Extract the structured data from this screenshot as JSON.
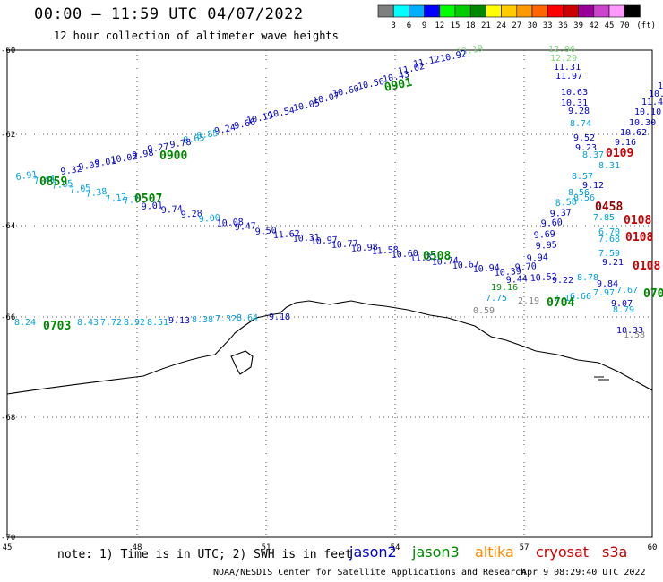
{
  "header": {
    "title": "00:00 – 11:59 UTC 04/07/2022",
    "subtitle": "12 hour collection of altimeter wave heights"
  },
  "colorbar": {
    "labels": [
      "3",
      "6",
      "9",
      "12",
      "15",
      "18",
      "21",
      "24",
      "27",
      "30",
      "33",
      "36",
      "39",
      "42",
      "45",
      "70"
    ],
    "unit": "(ft)",
    "colors": [
      "#7f7f7f",
      "#00ffff",
      "#00b0ff",
      "#0000ff",
      "#00ff00",
      "#00cc00",
      "#008800",
      "#ffff00",
      "#ffcc00",
      "#ff9900",
      "#ff6600",
      "#ff0000",
      "#cc0000",
      "#990099",
      "#cc44cc",
      "#ff99ff",
      "#000000"
    ]
  },
  "axes": {
    "lat_labels": [
      "-60",
      "-62",
      "-64",
      "-66",
      "-68",
      "-70"
    ],
    "lon_labels": [
      "45",
      "48",
      "51",
      "54",
      "57",
      "60"
    ]
  },
  "satellites": [
    {
      "name": "jason2",
      "color": "#0000cc"
    },
    {
      "name": "jason3",
      "color": "#008800"
    },
    {
      "name": "altika",
      "color": "#ff8800"
    },
    {
      "name": "cryosat",
      "color": "#cc0000"
    },
    {
      "name": "s3a",
      "color": "#cc0000"
    }
  ],
  "footer": {
    "note": "note:  1) Time is in UTC;  2) SWH is in feet",
    "credit": "NOAA/NESDIS Center for Satellite Applications and Research",
    "timestamp": "Apr  9 08:29:40 UTC 2022"
  },
  "time_labels": [
    {
      "text": "0901",
      "color": "#008800"
    },
    {
      "text": "0900",
      "color": "#008800"
    },
    {
      "text": "0859",
      "color": "#008800"
    },
    {
      "text": "0507",
      "color": "#008800"
    },
    {
      "text": "0508",
      "color": "#008800"
    },
    {
      "text": "0703",
      "color": "#008800"
    },
    {
      "text": "0704",
      "color": "#008800"
    },
    {
      "text": "0109",
      "color": "#cc0000"
    },
    {
      "text": "0458",
      "color": "#990000"
    },
    {
      "text": "0108",
      "color": "#cc0000"
    },
    {
      "text": "0108",
      "color": "#cc0000"
    },
    {
      "text": "0108",
      "color": "#cc0000"
    },
    {
      "text": "070",
      "color": "#008800"
    }
  ],
  "values": [
    {
      "text": "13.19",
      "color": "#7fd97f"
    },
    {
      "text": "10.92",
      "color": "#0000cc"
    },
    {
      "text": "11.12",
      "color": "#0000cc"
    },
    {
      "text": "11.02",
      "color": "#0000cc"
    },
    {
      "text": "10.43",
      "color": "#0000cc"
    },
    {
      "text": "10.56",
      "color": "#0000cc"
    },
    {
      "text": "10.60",
      "color": "#0000cc"
    },
    {
      "text": "10.07",
      "color": "#0000cc"
    },
    {
      "text": "10.05",
      "color": "#0000cc"
    },
    {
      "text": "10.54",
      "color": "#0000cc"
    },
    {
      "text": "10.19",
      "color": "#0000cc"
    },
    {
      "text": "9.66",
      "color": "#0000cc"
    },
    {
      "text": "9.24",
      "color": "#0000cc"
    },
    {
      "text": "8.85",
      "color": "#00a0e0"
    },
    {
      "text": "8.65",
      "color": "#00a0e0"
    },
    {
      "text": "9.78",
      "color": "#0000cc"
    },
    {
      "text": "9.27",
      "color": "#0000cc"
    },
    {
      "text": "9.98",
      "color": "#0000cc"
    },
    {
      "text": "10.02",
      "color": "#0000cc"
    },
    {
      "text": "9.01",
      "color": "#0000cc"
    },
    {
      "text": "9.03",
      "color": "#0000cc"
    },
    {
      "text": "9.32",
      "color": "#0000cc"
    },
    {
      "text": "6.91",
      "color": "#00a0e0"
    },
    {
      "text": "7.44",
      "color": "#00a0e0"
    },
    {
      "text": "7.05",
      "color": "#00a0e0"
    },
    {
      "text": "7.05",
      "color": "#00a0e0"
    },
    {
      "text": "7.38",
      "color": "#00a0e0"
    },
    {
      "text": "7.12",
      "color": "#00a0e0"
    },
    {
      "text": "7.7",
      "color": "#00a0e0"
    },
    {
      "text": "9.01",
      "color": "#0000cc"
    },
    {
      "text": "9.74",
      "color": "#0000cc"
    },
    {
      "text": "9.28",
      "color": "#0000cc"
    },
    {
      "text": "9.00",
      "color": "#00a0e0"
    },
    {
      "text": "10.08",
      "color": "#0000cc"
    },
    {
      "text": "9.47",
      "color": "#0000cc"
    },
    {
      "text": "9.50",
      "color": "#0000cc"
    },
    {
      "text": "11.62",
      "color": "#0000cc"
    },
    {
      "text": "10.31",
      "color": "#0000cc"
    },
    {
      "text": "10.97",
      "color": "#0000cc"
    },
    {
      "text": "10.77",
      "color": "#0000cc"
    },
    {
      "text": "10.98",
      "color": "#0000cc"
    },
    {
      "text": "11.58",
      "color": "#0000cc"
    },
    {
      "text": "10.60",
      "color": "#0000cc"
    },
    {
      "text": "11.31",
      "color": "#0000cc"
    },
    {
      "text": "10.74",
      "color": "#0000cc"
    },
    {
      "text": "10.67",
      "color": "#0000cc"
    },
    {
      "text": "10.94",
      "color": "#0000cc"
    },
    {
      "text": "10.39",
      "color": "#0000cc"
    },
    {
      "text": "9.44",
      "color": "#0000cc"
    },
    {
      "text": "10.52",
      "color": "#0000cc"
    },
    {
      "text": "9.70",
      "color": "#0000cc"
    },
    {
      "text": "9.94",
      "color": "#0000cc"
    },
    {
      "text": "9.95",
      "color": "#0000cc"
    },
    {
      "text": "9.69",
      "color": "#0000cc"
    },
    {
      "text": "9.60",
      "color": "#0000cc"
    },
    {
      "text": "9.37",
      "color": "#0000cc"
    },
    {
      "text": "8.58",
      "color": "#00a0e0"
    },
    {
      "text": "8.56",
      "color": "#00a0e0"
    },
    {
      "text": "8.56",
      "color": "#00a0e0"
    },
    {
      "text": "9.12",
      "color": "#0000cc"
    },
    {
      "text": "8.57",
      "color": "#00a0e0"
    },
    {
      "text": "8.31",
      "color": "#00a0e0"
    },
    {
      "text": "8.37",
      "color": "#00a0e0"
    },
    {
      "text": "9.23",
      "color": "#0000cc"
    },
    {
      "text": "9.52",
      "color": "#0000cc"
    },
    {
      "text": "8.74",
      "color": "#00a0e0"
    },
    {
      "text": "9.28",
      "color": "#0000cc"
    },
    {
      "text": "10.31",
      "color": "#0000cc"
    },
    {
      "text": "10.63",
      "color": "#0000cc"
    },
    {
      "text": "11.97",
      "color": "#0000cc"
    },
    {
      "text": "11.31",
      "color": "#0000cc"
    },
    {
      "text": "12.29",
      "color": "#7fd97f"
    },
    {
      "text": "12.96",
      "color": "#7fd97f"
    },
    {
      "text": "9.16",
      "color": "#0000cc"
    },
    {
      "text": "10.62",
      "color": "#0000cc"
    },
    {
      "text": "10.30",
      "color": "#0000cc"
    },
    {
      "text": "10.10",
      "color": "#0000cc"
    },
    {
      "text": "11.4",
      "color": "#0000cc"
    },
    {
      "text": "10.",
      "color": "#0000cc"
    },
    {
      "text": "1",
      "color": "#0000cc"
    },
    {
      "text": "7.85",
      "color": "#00a0e0"
    },
    {
      "text": "6.70",
      "color": "#00a0e0"
    },
    {
      "text": "7.68",
      "color": "#00a0e0"
    },
    {
      "text": "7.59",
      "color": "#00a0e0"
    },
    {
      "text": "9.21",
      "color": "#0000cc"
    },
    {
      "text": "9.22",
      "color": "#0000cc"
    },
    {
      "text": "8.78",
      "color": "#00a0e0"
    },
    {
      "text": "9.84",
      "color": "#0000cc"
    },
    {
      "text": "7.97",
      "color": "#00a0e0"
    },
    {
      "text": "7.67",
      "color": "#00a0e0"
    },
    {
      "text": "7.12",
      "color": "#00a0e0"
    },
    {
      "text": "6.66",
      "color": "#00a0e0"
    },
    {
      "text": "19.16",
      "color": "#008800"
    },
    {
      "text": "7.75",
      "color": "#00a0e0"
    },
    {
      "text": "0.59",
      "color": "#7f7f7f"
    },
    {
      "text": "2.19",
      "color": "#7f7f7f"
    },
    {
      "text": "9.07",
      "color": "#0000cc"
    },
    {
      "text": "8.79",
      "color": "#00a0e0"
    },
    {
      "text": "10.33",
      "color": "#0000cc"
    },
    {
      "text": "1.58",
      "color": "#7f7f7f"
    },
    {
      "text": "8.24",
      "color": "#00a0e0"
    },
    {
      "text": "8.43",
      "color": "#00a0e0"
    },
    {
      "text": "7.72",
      "color": "#00a0e0"
    },
    {
      "text": "8.92",
      "color": "#00a0e0"
    },
    {
      "text": "8.51",
      "color": "#00a0e0"
    },
    {
      "text": "9.13",
      "color": "#0000cc"
    },
    {
      "text": "8.38",
      "color": "#00a0e0"
    },
    {
      "text": "7.32",
      "color": "#00a0e0"
    },
    {
      "text": "8.64",
      "color": "#00a0e0"
    },
    {
      "text": "9.18",
      "color": "#0000cc"
    }
  ]
}
